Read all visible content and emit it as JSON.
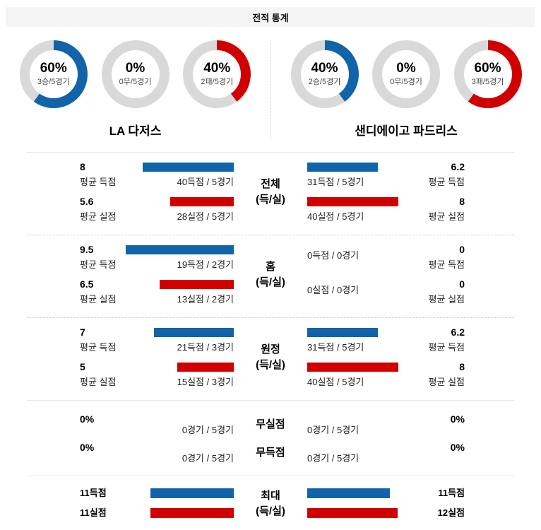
{
  "header": {
    "title": "전적 통계"
  },
  "colors": {
    "win": "#1164a9",
    "loss": "#d00000",
    "neutral": "#d9d9d9",
    "header_bg": "#f5f5f5"
  },
  "teams": [
    {
      "name": "LA 다저스",
      "donuts": [
        {
          "pct": 60,
          "pct_text": "60%",
          "label": "3승/5경기",
          "color": "win"
        },
        {
          "pct": 0,
          "pct_text": "0%",
          "label": "0무/5경기",
          "color": "neutral"
        },
        {
          "pct": 40,
          "pct_text": "40%",
          "label": "2패/5경기",
          "color": "loss"
        }
      ]
    },
    {
      "name": "샌디에이고 파드리스",
      "donuts": [
        {
          "pct": 40,
          "pct_text": "40%",
          "label": "2승/5경기",
          "color": "win"
        },
        {
          "pct": 0,
          "pct_text": "0%",
          "label": "0무/5경기",
          "color": "neutral"
        },
        {
          "pct": 60,
          "pct_text": "60%",
          "label": "3패/5경기",
          "color": "loss"
        }
      ]
    }
  ],
  "sections": {
    "total": {
      "title1": "전체",
      "title2": "(득/실)",
      "score": {
        "left_avg": "8",
        "left_avg_label": "평균 득점",
        "left_bar": 84.2,
        "left_caption": "40득점 / 5경기",
        "right_bar": 65.3,
        "right_caption": "31득점 / 5경기",
        "right_avg": "6.2",
        "right_avg_label": "평균 득점"
      },
      "concede": {
        "left_avg": "5.6",
        "left_avg_label": "평균 실점",
        "left_bar": 58.9,
        "left_caption": "28실점 / 5경기",
        "right_bar": 84.2,
        "right_caption": "40실점 / 5경기",
        "right_avg": "8",
        "right_avg_label": "평균 실점"
      }
    },
    "home": {
      "title1": "홈",
      "title2": "(득/실)",
      "score": {
        "left_avg": "9.5",
        "left_avg_label": "평균 득점",
        "left_bar": 100,
        "left_caption": "19득점 / 2경기",
        "right_bar": 0,
        "right_caption": "0득점 / 0경기",
        "right_avg": "0",
        "right_avg_label": "평균 득점"
      },
      "concede": {
        "left_avg": "6.5",
        "left_avg_label": "평균 실점",
        "left_bar": 68.4,
        "left_caption": "13실점 / 2경기",
        "right_bar": 0,
        "right_caption": "0실점 / 0경기",
        "right_avg": "0",
        "right_avg_label": "평균 실점"
      }
    },
    "away": {
      "title1": "원정",
      "title2": "(득/실)",
      "score": {
        "left_avg": "7",
        "left_avg_label": "평균 득점",
        "left_bar": 73.7,
        "left_caption": "21득점 / 3경기",
        "right_bar": 65.3,
        "right_caption": "31득점 / 5경기",
        "right_avg": "6.2",
        "right_avg_label": "평균 득점"
      },
      "concede": {
        "left_avg": "5",
        "left_avg_label": "평균 실점",
        "left_bar": 52.6,
        "left_caption": "15실점 / 3경기",
        "right_bar": 84.2,
        "right_caption": "40실점 / 5경기",
        "right_avg": "8",
        "right_avg_label": "평균 실점"
      }
    },
    "noscore": {
      "rows": [
        {
          "title": "무실점",
          "left_pct": "0%",
          "left_caption": "0경기 / 5경기",
          "right_caption": "0경기 / 5경기",
          "right_pct": "0%"
        },
        {
          "title": "무득점",
          "left_pct": "0%",
          "left_caption": "0경기 / 5경기",
          "right_caption": "0경기 / 5경기",
          "right_pct": "0%"
        }
      ]
    },
    "max": {
      "title1": "최대",
      "title2": "(득/실)",
      "score": {
        "left_label": "11득점",
        "left_bar": 77,
        "right_bar": 76.5,
        "right_label": "11득점"
      },
      "concede": {
        "left_label": "11실점",
        "left_bar": 77,
        "right_bar": 83.7,
        "right_label": "12실점"
      }
    }
  },
  "chart_data": [
    {
      "type": "pie",
      "title": "LA 다저스 승/무/패 (최근 5경기)",
      "labels": [
        "승",
        "무",
        "패"
      ],
      "values": [
        60,
        0,
        40
      ],
      "records": [
        "3승/5경기",
        "0무/5경기",
        "2패/5경기"
      ],
      "colors": [
        "#1164a9",
        "#d9d9d9",
        "#d00000"
      ]
    },
    {
      "type": "pie",
      "title": "샌디에이고 파드리스 승/무/패 (최근 5경기)",
      "labels": [
        "승",
        "무",
        "패"
      ],
      "values": [
        40,
        0,
        60
      ],
      "records": [
        "2승/5경기",
        "0무/5경기",
        "3패/5경기"
      ],
      "colors": [
        "#1164a9",
        "#d9d9d9",
        "#d00000"
      ]
    },
    {
      "type": "bar",
      "title": "전적 통계 평균 득점/실점 비교",
      "categories": [
        "전체 득점",
        "전체 실점",
        "홈 득점",
        "홈 실점",
        "원정 득점",
        "원정 실점"
      ],
      "series": [
        {
          "name": "LA 다저스",
          "values": [
            8,
            5.6,
            9.5,
            6.5,
            7,
            5
          ],
          "totals": [
            "40득점/5경기",
            "28실점/5경기",
            "19득점/2경기",
            "13실점/2경기",
            "21득점/3경기",
            "15실점/3경기"
          ]
        },
        {
          "name": "샌디에이고 파드리스",
          "values": [
            6.2,
            8,
            0,
            0,
            6.2,
            8
          ],
          "totals": [
            "31득점/5경기",
            "40실점/5경기",
            "0득점/0경기",
            "0실점/0경기",
            "31득점/5경기",
            "40실점/5경기"
          ]
        }
      ],
      "xlim": [
        0,
        9.5
      ]
    },
    {
      "type": "bar",
      "title": "무실점/무득점 경기 비율",
      "categories": [
        "무실점",
        "무득점"
      ],
      "series": [
        {
          "name": "LA 다저스",
          "values": [
            0,
            0
          ],
          "totals": [
            "0경기/5경기",
            "0경기/5경기"
          ]
        },
        {
          "name": "샌디에이고 파드리스",
          "values": [
            0,
            0
          ],
          "totals": [
            "0경기/5경기",
            "0경기/5경기"
          ]
        }
      ],
      "unit": "%"
    },
    {
      "type": "bar",
      "title": "최대 득점/실점",
      "categories": [
        "최대 득점",
        "최대 실점"
      ],
      "series": [
        {
          "name": "LA 다저스",
          "values": [
            11,
            11
          ]
        },
        {
          "name": "샌디에이고 파드리스",
          "values": [
            11,
            12
          ]
        }
      ],
      "xlim": [
        0,
        12
      ]
    }
  ]
}
